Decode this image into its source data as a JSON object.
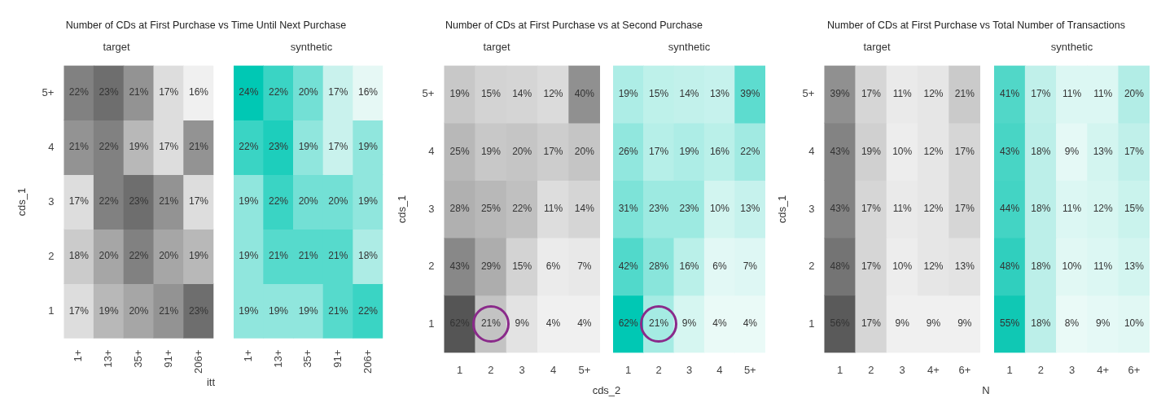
{
  "chart_data": [
    {
      "type": "heatmap",
      "title": "Number of CDs at First Purchase vs Time Until Next Purchase",
      "subtitle": "target",
      "xlabel": "itt",
      "ylabel": "cds_1",
      "categories": [
        "1+",
        "13+",
        "35+",
        "91+",
        "206+"
      ],
      "y_categories": [
        "5+",
        "4",
        "3",
        "2",
        "1"
      ],
      "colors": [
        "#f0f0f0",
        "#6e6e6e"
      ],
      "cells": [
        [
          22,
          23,
          21,
          17,
          16
        ],
        [
          21,
          22,
          19,
          17,
          21
        ],
        [
          17,
          22,
          23,
          21,
          17
        ],
        [
          18,
          20,
          22,
          20,
          19
        ],
        [
          17,
          19,
          20,
          21,
          23
        ]
      ],
      "cell_labels": [
        [
          "22%",
          "23%",
          "21%",
          "17%",
          "16%"
        ],
        [
          "21%",
          "22%",
          "19%",
          "17%",
          "21%"
        ],
        [
          "17%",
          "22%",
          "23%",
          "21%",
          "17%"
        ],
        [
          "18%",
          "20%",
          "22%",
          "20%",
          "19%"
        ],
        [
          "17%",
          "19%",
          "20%",
          "21%",
          "23%"
        ]
      ]
    },
    {
      "type": "heatmap",
      "subtitle": "synthetic",
      "categories": [
        "1+",
        "13+",
        "35+",
        "91+",
        "206+"
      ],
      "y_categories": [
        null,
        null,
        null,
        null,
        null
      ],
      "colors": [
        "#e6f8f5",
        "#00c8b4"
      ],
      "tick_labels": "x",
      "cells": [
        [
          24,
          22,
          20,
          17,
          16
        ],
        [
          22,
          23,
          19,
          17,
          19
        ],
        [
          19,
          22,
          20,
          20,
          19
        ],
        [
          19,
          21,
          21,
          21,
          18
        ],
        [
          19,
          19,
          19,
          21,
          22
        ]
      ],
      "cell_labels": [
        [
          "24%",
          "22%",
          "20%",
          "17%",
          "16%"
        ],
        [
          "22%",
          "23%",
          "19%",
          "17%",
          "19%"
        ],
        [
          "19%",
          "22%",
          "20%",
          "20%",
          "19%"
        ],
        [
          "19%",
          "21%",
          "21%",
          "21%",
          "18%"
        ],
        [
          "19%",
          "19%",
          "19%",
          "21%",
          "22%"
        ]
      ]
    },
    {
      "type": "heatmap",
      "title": "Number of CDs at First Purchase vs at Second Purchase",
      "subtitle": "target",
      "xlabel": "cds_2",
      "ylabel": "cds_1",
      "categories": [
        "1",
        "2",
        "3",
        "4",
        "5+"
      ],
      "y_categories": [
        "5+",
        "4",
        "3",
        "2",
        "1"
      ],
      "colors": [
        "#f0f0f0",
        "#555555"
      ],
      "cells": [
        [
          19,
          15,
          14,
          12,
          40
        ],
        [
          25,
          19,
          20,
          17,
          20
        ],
        [
          28,
          25,
          22,
          11,
          14
        ],
        [
          43,
          29,
          15,
          6,
          7
        ],
        [
          62,
          21,
          9,
          4,
          4
        ]
      ],
      "cell_labels": [
        [
          "19%",
          "15%",
          "14%",
          "12%",
          "40%"
        ],
        [
          "25%",
          "19%",
          "20%",
          "17%",
          "20%"
        ],
        [
          "28%",
          "25%",
          "22%",
          "11%",
          "14%"
        ],
        [
          "43%",
          "29%",
          "15%",
          "6%",
          "7%"
        ],
        [
          "62%",
          "21%",
          "9%",
          "4%",
          "4%"
        ]
      ]
    },
    {
      "type": "heatmap",
      "subtitle": "synthetic",
      "categories": [
        "1",
        "2",
        "3",
        "4",
        "5+"
      ],
      "y_categories": [
        null,
        null,
        null,
        null,
        null
      ],
      "colors": [
        "#eafaf7",
        "#00c8b4"
      ],
      "tick_labels": "x",
      "cells": [
        [
          19,
          15,
          14,
          13,
          39
        ],
        [
          26,
          17,
          19,
          16,
          22
        ],
        [
          31,
          23,
          23,
          10,
          13
        ],
        [
          42,
          28,
          16,
          6,
          7
        ],
        [
          62,
          21,
          9,
          4,
          4
        ]
      ],
      "cell_labels": [
        [
          "19%",
          "15%",
          "14%",
          "13%",
          "39%"
        ],
        [
          "26%",
          "17%",
          "19%",
          "16%",
          "22%"
        ],
        [
          "31%",
          "23%",
          "23%",
          "10%",
          "13%"
        ],
        [
          "42%",
          "28%",
          "16%",
          "6%",
          "7%"
        ],
        [
          "62%",
          "21%",
          "9%",
          "4%",
          "4%"
        ]
      ]
    },
    {
      "type": "heatmap",
      "title": "Number of CDs at First Purchase vs Total Number of Transactions",
      "subtitle": "target",
      "xlabel": "N",
      "ylabel": "cds_1",
      "categories": [
        "1",
        "2",
        "3",
        "4+",
        "6+"
      ],
      "y_categories": [
        "5+",
        "4",
        "3",
        "2",
        "1"
      ],
      "colors": [
        "#f0f0f0",
        "#5a5a5a"
      ],
      "cells": [
        [
          39,
          17,
          11,
          12,
          21
        ],
        [
          43,
          19,
          10,
          12,
          17
        ],
        [
          43,
          17,
          11,
          12,
          17
        ],
        [
          48,
          17,
          10,
          12,
          13
        ],
        [
          56,
          17,
          9,
          9,
          9
        ]
      ],
      "cell_labels": [
        [
          "39%",
          "17%",
          "11%",
          "12%",
          "21%"
        ],
        [
          "43%",
          "19%",
          "10%",
          "12%",
          "17%"
        ],
        [
          "43%",
          "17%",
          "11%",
          "12%",
          "17%"
        ],
        [
          "48%",
          "17%",
          "10%",
          "12%",
          "13%"
        ],
        [
          "56%",
          "17%",
          "9%",
          "9%",
          "9%"
        ]
      ]
    },
    {
      "type": "heatmap",
      "subtitle": "synthetic",
      "categories": [
        "1",
        "2",
        "3",
        "4+",
        "6+"
      ],
      "y_categories": [
        null,
        null,
        null,
        null,
        null
      ],
      "colors": [
        "#eafaf7",
        "#10c8b4"
      ],
      "tick_labels": "x",
      "cells": [
        [
          41,
          17,
          11,
          11,
          20
        ],
        [
          43,
          18,
          9,
          13,
          17
        ],
        [
          44,
          18,
          11,
          12,
          15
        ],
        [
          48,
          18,
          10,
          11,
          13
        ],
        [
          55,
          18,
          8,
          9,
          10
        ]
      ],
      "cell_labels": [
        [
          "41%",
          "17%",
          "11%",
          "11%",
          "20%"
        ],
        [
          "43%",
          "18%",
          "9%",
          "13%",
          "17%"
        ],
        [
          "44%",
          "18%",
          "11%",
          "12%",
          "15%"
        ],
        [
          "48%",
          "18%",
          "10%",
          "11%",
          "13%"
        ],
        [
          "55%",
          "18%",
          "8%",
          "9%",
          "10%"
        ]
      ]
    }
  ]
}
